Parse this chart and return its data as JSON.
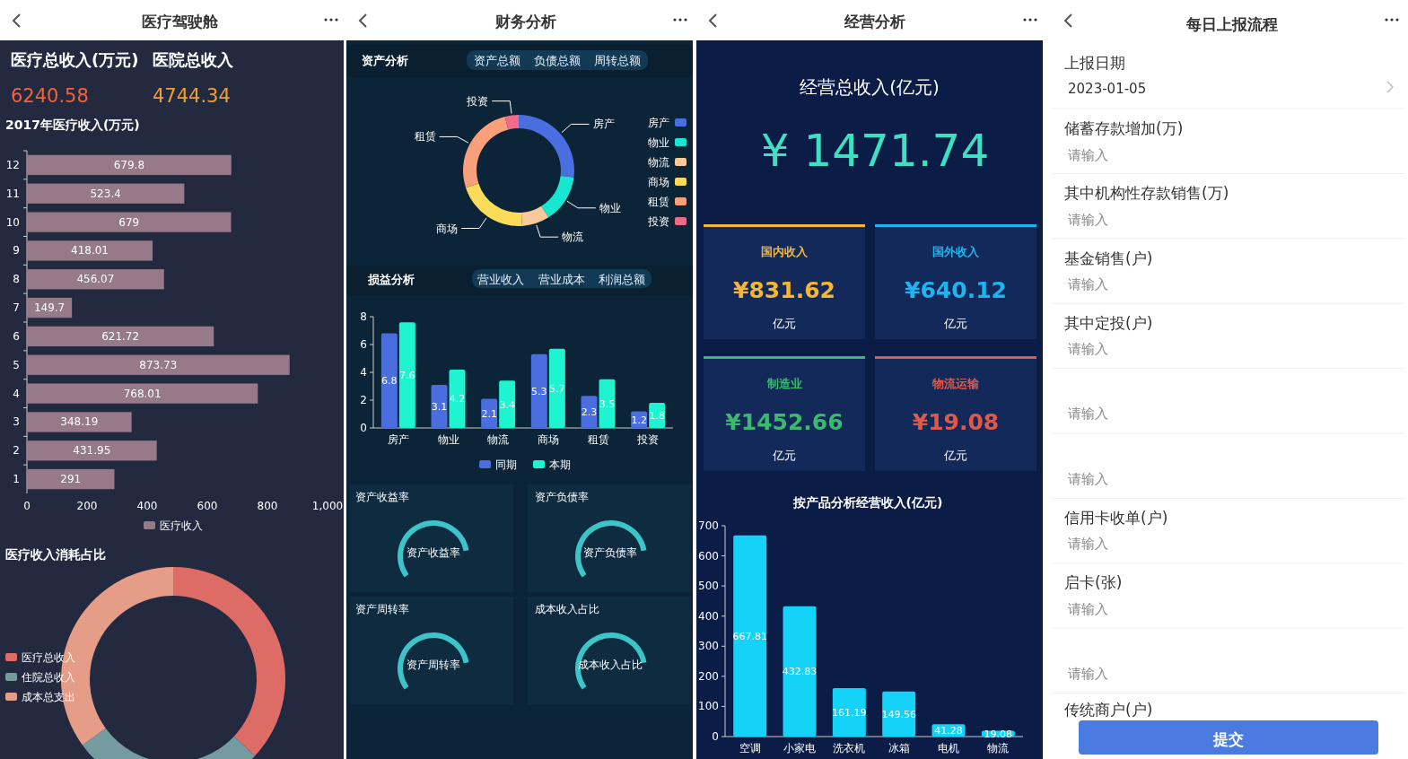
{
  "chart_data": [
    {
      "type": "other",
      "title": "医疗驾驶舱",
      "annotations": [
        "医疗总收入(万元)",
        "医院总收入",
        "6240.58",
        "4744.34"
      ]
    },
    {
      "type": "bar",
      "orientation": "horizontal",
      "title": "2017年医疗收入(万元)",
      "categories": [
        "12",
        "11",
        "10",
        "9",
        "8",
        "7",
        "6",
        "5",
        "4",
        "3",
        "2",
        "1"
      ],
      "series": [
        {
          "name": "医疗收入",
          "color": "#967a8a",
          "values": [
            679.8,
            523.4,
            679,
            418.01,
            456.07,
            149.7,
            621.72,
            873.73,
            768.01,
            348.19,
            431.95,
            291
          ]
        }
      ],
      "xlim": [
        0,
        1000
      ],
      "xticks": [
        0,
        200,
        400,
        600,
        800,
        {
          "value": 1000,
          "label": "1,000"
        }
      ],
      "data_labels": true,
      "legend": "bottom"
    },
    {
      "type": "donut",
      "title": "医疗收入消耗占比",
      "categories": [
        "医疗总收入",
        "住院总收入",
        "成本总支出"
      ],
      "values": [
        37,
        28,
        35
      ],
      "colors": [
        "#dd6b66",
        "#759aa0",
        "#e69d87"
      ],
      "legend": "left"
    },
    {
      "type": "donut",
      "title": "资产分析",
      "annotations": [
        "资产总额",
        "负债总额",
        "周转总额"
      ],
      "categories": [
        "房产",
        "物业",
        "物流",
        "商场",
        "租赁",
        "投资"
      ],
      "values": [
        27,
        14,
        8,
        21,
        26,
        4
      ],
      "colors": [
        "#4a6ee0",
        "#19e6d2",
        "#f8c99a",
        "#fadc5a",
        "#f9a07a",
        "#f06b85"
      ],
      "legend": "right"
    },
    {
      "type": "bar",
      "title": "损益分析",
      "annotations": [
        "营业收入",
        "营业成本",
        "利润总额"
      ],
      "categories": [
        "房产",
        "物业",
        "物流",
        "商场",
        "租赁",
        "投资"
      ],
      "series": [
        {
          "name": "同期",
          "color": "#4a6ee0",
          "values": [
            6.8,
            3.1,
            2.1,
            5.3,
            2.3,
            1.2
          ]
        },
        {
          "name": "本期",
          "color": "#1ef4d0",
          "values": [
            7.6,
            4.2,
            3.4,
            5.7,
            3.5,
            1.8
          ]
        }
      ],
      "ylim": [
        0,
        8
      ],
      "yticks": [
        0,
        2,
        4,
        6,
        8
      ],
      "data_labels": true,
      "legend": "bottom"
    },
    {
      "type": "other",
      "title": "财务分析",
      "annotations": [
        "资产收益率",
        "资产收益率",
        "资产负债率",
        "资产负债率",
        "资产周转率",
        "资产周转率",
        "成本收入占比",
        "成本收入占比"
      ]
    },
    {
      "type": "other",
      "title": "经营分析",
      "annotations": [
        "经营总收入(亿元)",
        "¥ 1471.74",
        "国内收入",
        "¥831.62",
        "亿元",
        "国外收入",
        "¥640.12",
        "亿元",
        "制造业",
        "¥1452.66",
        "亿元",
        "物流运输",
        "¥19.08",
        "亿元"
      ]
    },
    {
      "type": "bar",
      "title": "按产品分析经营收入(亿元)",
      "categories": [
        "空调",
        "小家电",
        "洗衣机",
        "冰箱",
        "电机",
        "物流"
      ],
      "series": [
        {
          "color": "#14d2f8",
          "values": [
            667.81,
            432.83,
            161.19,
            149.56,
            41.28,
            19.08
          ]
        }
      ],
      "ylim": [
        0,
        700
      ],
      "yticks": [
        0,
        100,
        200,
        300,
        400,
        500,
        600,
        700
      ],
      "data_labels": true
    },
    {
      "type": "other",
      "title": "每日上报流程",
      "annotations": [
        "上报日期",
        "2023-01-05",
        "储蓄存款增加(万)",
        "请输入",
        "其中机构性存款销售(万)",
        "请输入",
        "基金销售(户)",
        "请输入",
        "其中定投(户)",
        "请输入",
        "请输入",
        "请输入",
        "信用卡收单(户)",
        "请输入",
        "启卡(张)",
        "请输入",
        "请输入",
        "传统商户(户)",
        "提交"
      ]
    }
  ]
}
